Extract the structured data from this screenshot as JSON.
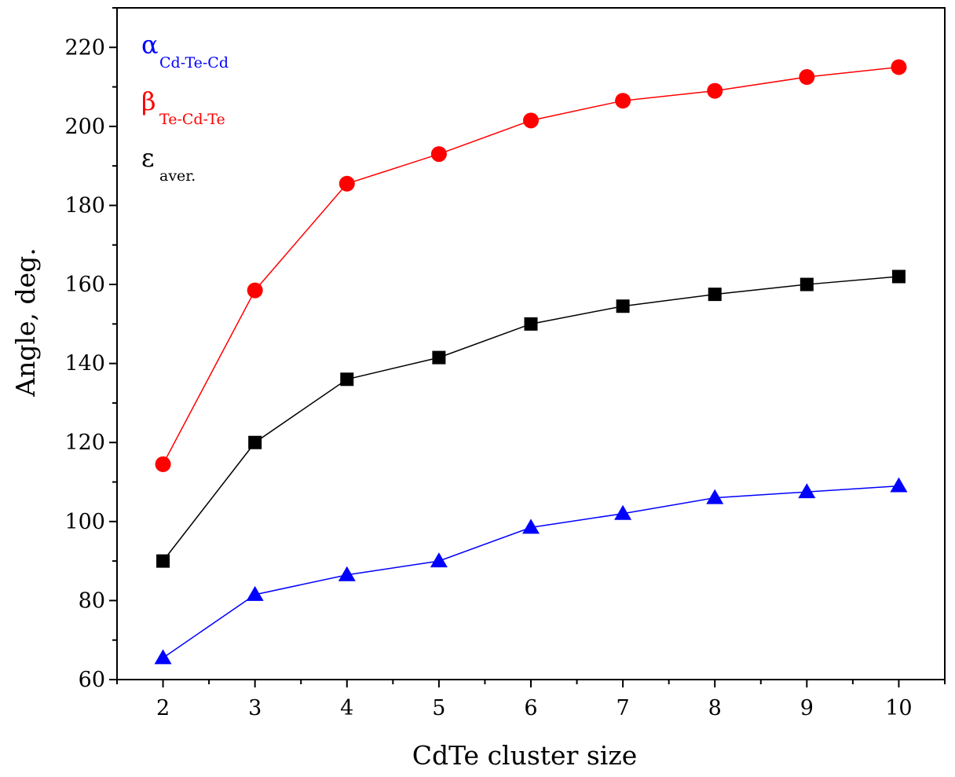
{
  "chart_data": {
    "type": "line",
    "xlabel": "CdTe cluster size",
    "ylabel": "Angle, deg.",
    "xlim": [
      1.5,
      10.5
    ],
    "ylim": [
      60,
      230
    ],
    "x_ticks": [
      2,
      3,
      4,
      5,
      6,
      7,
      8,
      9,
      10
    ],
    "y_ticks": [
      60,
      80,
      100,
      120,
      140,
      160,
      180,
      200,
      220
    ],
    "grid": false,
    "legend_position": "top-left",
    "x": [
      2,
      3,
      4,
      5,
      6,
      7,
      8,
      9,
      10
    ],
    "series": [
      {
        "name": "α",
        "subscript": "Cd-Te-Cd",
        "color": "#0000ff",
        "marker": "triangle",
        "values": [
          65.5,
          81.5,
          86.5,
          90,
          98.5,
          102,
          106,
          107.5,
          109
        ]
      },
      {
        "name": "β",
        "subscript": "Te-Cd-Te",
        "color": "#ff0000",
        "marker": "circle",
        "values": [
          114.5,
          158.5,
          185.5,
          193,
          201.5,
          206.5,
          209,
          212.5,
          215
        ]
      },
      {
        "name": "ε",
        "subscript": "aver.",
        "color": "#000000",
        "marker": "square",
        "values": [
          90,
          120,
          136,
          141.5,
          150,
          154.5,
          157.5,
          160,
          162
        ]
      }
    ]
  }
}
